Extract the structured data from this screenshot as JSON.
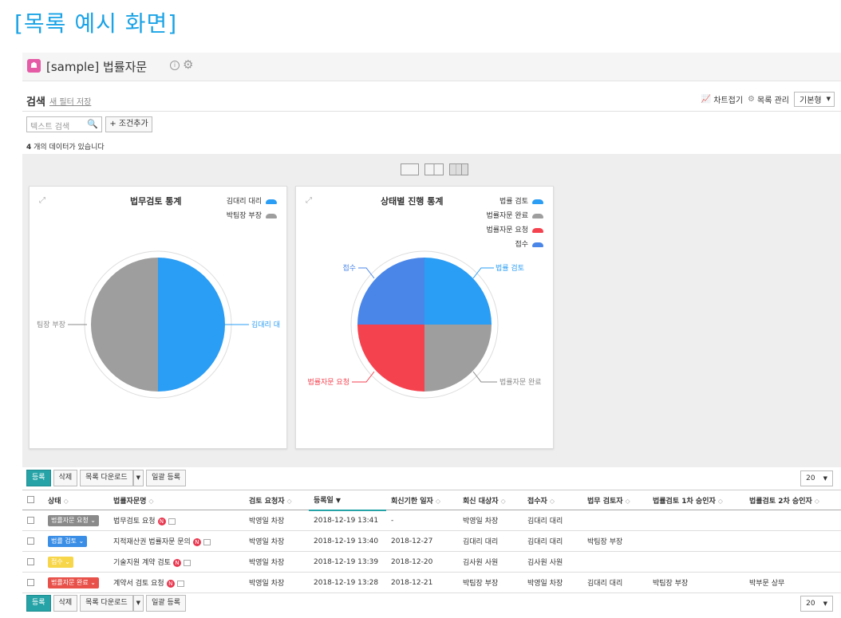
{
  "heading": "[목록 예시 화면]",
  "app": {
    "icon_char": "☗",
    "title": "[sample] 법률자문",
    "info": "i"
  },
  "search": {
    "label": "검색",
    "save_filter": "새 필터 저장",
    "placeholder": "텍스트 검색",
    "add_condition": "+ 조건추가"
  },
  "tools": {
    "chart_toggle": "차트접기",
    "list_manage": "목록 관리",
    "view_type": "기본형"
  },
  "count": {
    "value": "4",
    "suffix": " 개의 데이터가 있습니다"
  },
  "charts": [
    {
      "title": "법무검토 통계",
      "legend": [
        {
          "name": "김대리 대리",
          "color": "#2a9df4"
        },
        {
          "name": "박팀장 부장",
          "color": "#9e9e9e"
        }
      ],
      "labels": {
        "left": "팀장 부장",
        "right": "김대리 대"
      }
    },
    {
      "title": "상태별 진행 통계",
      "legend": [
        {
          "name": "법률 검토",
          "color": "#2a9df4"
        },
        {
          "name": "법률자문 완료",
          "color": "#9e9e9e"
        },
        {
          "name": "법률자문 요청",
          "color": "#f5424f"
        },
        {
          "name": "접수",
          "color": "#4a86e8"
        }
      ],
      "labels": {
        "tl": "접수",
        "tr": "법률 검토",
        "bl": "법률자문 요청",
        "br": "법률자문 완료"
      }
    }
  ],
  "chart_data": [
    {
      "type": "pie",
      "title": "법무검토 통계",
      "categories": [
        "김대리 대리",
        "박팀장 부장"
      ],
      "values": [
        1,
        1
      ],
      "colors": [
        "#2a9df4",
        "#9e9e9e"
      ],
      "legend": "top-right"
    },
    {
      "type": "pie",
      "title": "상태별 진행 통계",
      "categories": [
        "법률 검토",
        "법률자문 완료",
        "법률자문 요청",
        "접수"
      ],
      "values": [
        1,
        1,
        1,
        1
      ],
      "colors": [
        "#2a9df4",
        "#9e9e9e",
        "#f5424f",
        "#4a86e8"
      ],
      "legend": "top-right"
    }
  ],
  "toolbar": {
    "register": "등록",
    "delete": "삭제",
    "download": "목록 다운로드",
    "bulk": "일괄 등록",
    "page_size": "20"
  },
  "table": {
    "headers": [
      "상태",
      "법률자문명",
      "검토 요청자",
      "등록일",
      "회신기한 일자",
      "회신 대상자",
      "접수자",
      "법무 검토자",
      "법률검토 1차 승인자",
      "법률검토 2차 승인자"
    ],
    "rows": [
      {
        "status": "법률자문 요청",
        "status_color": "#8a8a8a",
        "name": "법무검토 요청",
        "requester": "박영일 차장",
        "date": "2018-12-19 13:41",
        "due": "-",
        "reply": "박영일 차장",
        "receiver": "김대리 대리",
        "reviewer": "",
        "approver1": "",
        "approver2": ""
      },
      {
        "status": "법률 검토",
        "status_color": "#3a8ee6",
        "name": "지적재산권 법률자문 문의",
        "requester": "박영일 차장",
        "date": "2018-12-19 13:40",
        "due": "2018-12-27",
        "reply": "김대리 대리",
        "receiver": "김대리 대리",
        "reviewer": "박팀장 부장",
        "approver1": "",
        "approver2": ""
      },
      {
        "status": "접수",
        "status_color": "#f7d64a",
        "name": "기술지원 계약 검토",
        "requester": "박영일 차장",
        "date": "2018-12-19 13:39",
        "due": "2018-12-20",
        "reply": "김사원 사원",
        "receiver": "김사원 사원",
        "reviewer": "",
        "approver1": "",
        "approver2": ""
      },
      {
        "status": "법률자문 완료",
        "status_color": "#e8514a",
        "name": "계약서 검토 요청",
        "requester": "박영일 차장",
        "date": "2018-12-19 13:28",
        "due": "2018-12-21",
        "reply": "박팀장 부장",
        "receiver": "박영일 차장",
        "reviewer": "김대리 대리",
        "approver1": "박팀장 부장",
        "approver2": "박부문 상무"
      }
    ]
  }
}
